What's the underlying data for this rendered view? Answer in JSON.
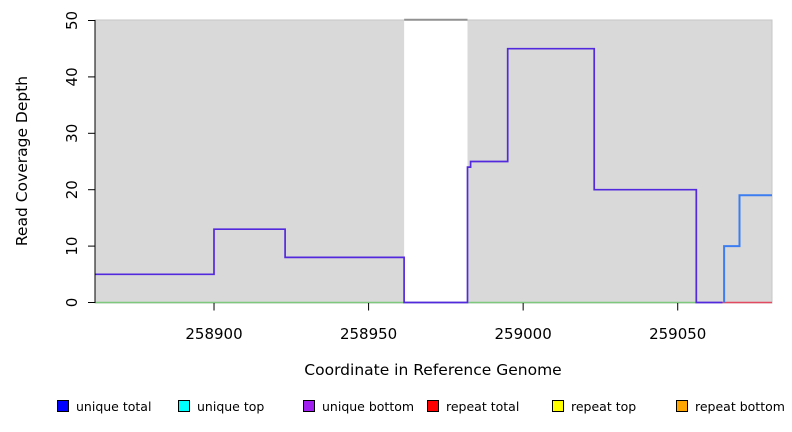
{
  "chart_data": {
    "type": "step-line",
    "title": "",
    "xlabel": "Coordinate in Reference Genome",
    "ylabel": "Read Coverage Depth",
    "xlim": [
      258861.5,
      259080.5
    ],
    "ylim": [
      0,
      50
    ],
    "x_ticks": [
      258900,
      258950,
      259000,
      259050
    ],
    "y_ticks": [
      0,
      10,
      20,
      30,
      40,
      50
    ],
    "grid": false,
    "background": {
      "covered_color": "#d9d9d9",
      "covered_border": "#c6c6c6",
      "gap_color": "#ffffff"
    },
    "gap_region": {
      "x0": 258961.5,
      "x1": 258982,
      "top_line_value": 50,
      "top_line_color": "#919191"
    },
    "series": [
      {
        "name": "unique bottom",
        "color": "#5329dd",
        "width": 1.7,
        "steps": [
          [
            258861.5,
            5
          ],
          [
            258900,
            13
          ],
          [
            258923,
            8
          ],
          [
            258961.5,
            0
          ],
          [
            258982,
            24
          ],
          [
            258983,
            25
          ],
          [
            258995,
            45
          ],
          [
            259023,
            20
          ],
          [
            259056,
            0
          ],
          [
            259064.5,
            0
          ]
        ]
      },
      {
        "name": "unique total",
        "color": "#3c7ef2",
        "width": 2,
        "steps": [
          [
            259065,
            0
          ],
          [
            259065,
            10
          ],
          [
            259070,
            19
          ],
          [
            259080.5,
            19
          ]
        ]
      }
    ],
    "zero_lines": [
      {
        "name": "covered baseline",
        "color": "#7ec87e",
        "x0": 258861.5,
        "x1": 259056
      },
      {
        "name": "repeat total",
        "color": "#e14a60",
        "x0": 259064.5,
        "x1": 259080.5
      }
    ]
  },
  "legend": {
    "items": [
      {
        "label": "unique total",
        "color": "#0000ff"
      },
      {
        "label": "unique top",
        "color": "#00ffff"
      },
      {
        "label": "unique bottom",
        "color": "#a020f0"
      },
      {
        "label": "repeat total",
        "color": "#ff0000"
      },
      {
        "label": "repeat top",
        "color": "#ffff00"
      },
      {
        "label": "repeat bottom",
        "color": "#ffa500"
      }
    ]
  }
}
